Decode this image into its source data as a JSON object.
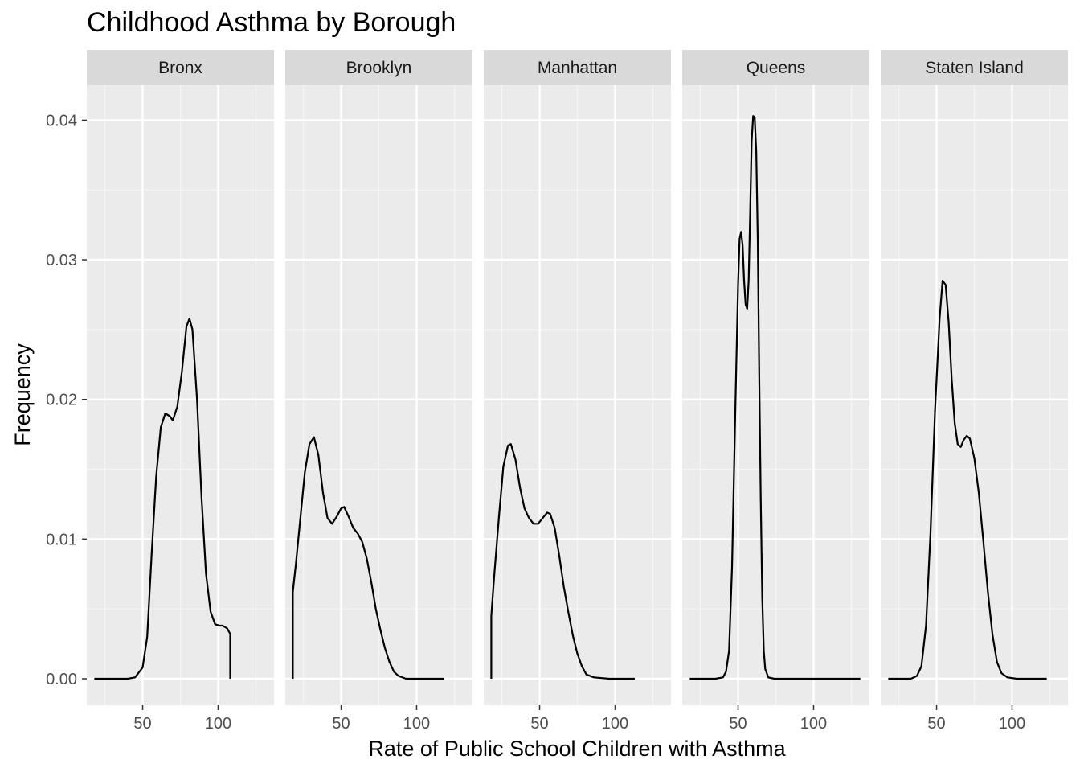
{
  "chart_data": {
    "type": "line",
    "subtype": "faceted density",
    "title": "Childhood Asthma by Borough",
    "xlabel": "Rate of Public School Children with Asthma",
    "ylabel": "Frequency",
    "xlim": [
      13,
      137
    ],
    "ylim": [
      -0.0019,
      0.0425
    ],
    "x_ticks": [
      50,
      100
    ],
    "x_minor_ticks": [
      25,
      75,
      125
    ],
    "y_ticks": [
      0.0,
      0.01,
      0.02,
      0.03,
      0.04
    ],
    "y_tick_labels": [
      "0.00",
      "0.01",
      "0.02",
      "0.03",
      "0.04"
    ],
    "y_minor_ticks": [
      0.005,
      0.015,
      0.025,
      0.035
    ],
    "grid": true,
    "colors": {
      "panel_bg": "#ebebeb",
      "grid_major": "#ffffff",
      "grid_minor": "#f5f5f5",
      "strip_bg": "#d9d9d9",
      "line": "#000000",
      "tick_text": "#4d4d4d"
    },
    "panels": [
      {
        "name": "Bronx",
        "points": [
          [
            18,
            0
          ],
          [
            40,
            0
          ],
          [
            45,
            0.0001
          ],
          [
            50,
            0.0008
          ],
          [
            53,
            0.003
          ],
          [
            56,
            0.009
          ],
          [
            59,
            0.0145
          ],
          [
            62,
            0.018
          ],
          [
            65,
            0.019
          ],
          [
            68,
            0.0188
          ],
          [
            70,
            0.0185
          ],
          [
            73,
            0.0195
          ],
          [
            76,
            0.022
          ],
          [
            79,
            0.0252
          ],
          [
            81,
            0.0258
          ],
          [
            83,
            0.025
          ],
          [
            86,
            0.02
          ],
          [
            89,
            0.013
          ],
          [
            92,
            0.0075
          ],
          [
            95,
            0.0048
          ],
          [
            98,
            0.0039
          ],
          [
            101,
            0.0038
          ],
          [
            103,
            0.0038
          ],
          [
            106,
            0.0036
          ],
          [
            108,
            0.0032
          ],
          [
            108,
            0
          ]
        ]
      },
      {
        "name": "Brooklyn",
        "points": [
          [
            18,
            0
          ],
          [
            18,
            0.0062
          ],
          [
            20,
            0.0082
          ],
          [
            23,
            0.0115
          ],
          [
            26,
            0.0148
          ],
          [
            29,
            0.0168
          ],
          [
            32,
            0.0173
          ],
          [
            35,
            0.016
          ],
          [
            38,
            0.0133
          ],
          [
            41,
            0.0115
          ],
          [
            44,
            0.0111
          ],
          [
            47,
            0.0116
          ],
          [
            50,
            0.0122
          ],
          [
            52,
            0.0123
          ],
          [
            55,
            0.0116
          ],
          [
            58,
            0.0108
          ],
          [
            61,
            0.0104
          ],
          [
            64,
            0.0098
          ],
          [
            67,
            0.0086
          ],
          [
            70,
            0.0069
          ],
          [
            73,
            0.005
          ],
          [
            76,
            0.0035
          ],
          [
            79,
            0.0022
          ],
          [
            82,
            0.0012
          ],
          [
            85,
            0.0005
          ],
          [
            88,
            0.0002
          ],
          [
            93,
            0
          ],
          [
            103,
            0
          ],
          [
            113,
            0
          ],
          [
            118,
            0
          ]
        ]
      },
      {
        "name": "Manhattan",
        "points": [
          [
            18,
            0
          ],
          [
            18,
            0.0045
          ],
          [
            20,
            0.0075
          ],
          [
            23,
            0.0115
          ],
          [
            26,
            0.0152
          ],
          [
            29,
            0.0167
          ],
          [
            31,
            0.0168
          ],
          [
            34,
            0.0157
          ],
          [
            37,
            0.0137
          ],
          [
            40,
            0.0122
          ],
          [
            43,
            0.0115
          ],
          [
            46,
            0.0111
          ],
          [
            49,
            0.0111
          ],
          [
            52,
            0.0115
          ],
          [
            55,
            0.0119
          ],
          [
            57,
            0.0118
          ],
          [
            60,
            0.0108
          ],
          [
            63,
            0.0088
          ],
          [
            66,
            0.0066
          ],
          [
            69,
            0.0048
          ],
          [
            72,
            0.0031
          ],
          [
            75,
            0.0018
          ],
          [
            78,
            0.0009
          ],
          [
            81,
            0.0003
          ],
          [
            86,
            0.0001
          ],
          [
            96,
            0
          ],
          [
            106,
            0
          ],
          [
            113,
            0
          ]
        ]
      },
      {
        "name": "Queens",
        "points": [
          [
            18,
            0
          ],
          [
            35,
            0
          ],
          [
            40,
            0.0001
          ],
          [
            42,
            0.0005
          ],
          [
            44,
            0.002
          ],
          [
            46,
            0.008
          ],
          [
            48,
            0.0185
          ],
          [
            50,
            0.0282
          ],
          [
            51,
            0.0315
          ],
          [
            52,
            0.032
          ],
          [
            53,
            0.031
          ],
          [
            54,
            0.0285
          ],
          [
            55,
            0.0268
          ],
          [
            56,
            0.0265
          ],
          [
            57,
            0.0285
          ],
          [
            58,
            0.0335
          ],
          [
            59,
            0.0385
          ],
          [
            60,
            0.0403
          ],
          [
            61,
            0.0402
          ],
          [
            62,
            0.0378
          ],
          [
            63,
            0.0315
          ],
          [
            64,
            0.022
          ],
          [
            65,
            0.013
          ],
          [
            66,
            0.0058
          ],
          [
            67,
            0.002
          ],
          [
            68,
            0.0007
          ],
          [
            70,
            0.0001
          ],
          [
            74,
            0
          ],
          [
            103,
            0
          ],
          [
            131,
            0
          ]
        ]
      },
      {
        "name": "Staten Island",
        "points": [
          [
            18,
            0
          ],
          [
            33,
            0
          ],
          [
            37,
            0.0002
          ],
          [
            40,
            0.0009
          ],
          [
            43,
            0.0038
          ],
          [
            46,
            0.0105
          ],
          [
            49,
            0.0192
          ],
          [
            52,
            0.0258
          ],
          [
            54,
            0.0285
          ],
          [
            56,
            0.0282
          ],
          [
            58,
            0.0255
          ],
          [
            60,
            0.0215
          ],
          [
            62,
            0.0183
          ],
          [
            64,
            0.0168
          ],
          [
            66,
            0.0166
          ],
          [
            68,
            0.0171
          ],
          [
            70,
            0.0174
          ],
          [
            72,
            0.0172
          ],
          [
            75,
            0.0158
          ],
          [
            78,
            0.0133
          ],
          [
            81,
            0.0098
          ],
          [
            84,
            0.0062
          ],
          [
            87,
            0.0032
          ],
          [
            90,
            0.0012
          ],
          [
            93,
            0.0004
          ],
          [
            97,
            0.0001
          ],
          [
            103,
            0
          ],
          [
            113,
            0
          ],
          [
            123,
            0
          ]
        ]
      }
    ]
  }
}
